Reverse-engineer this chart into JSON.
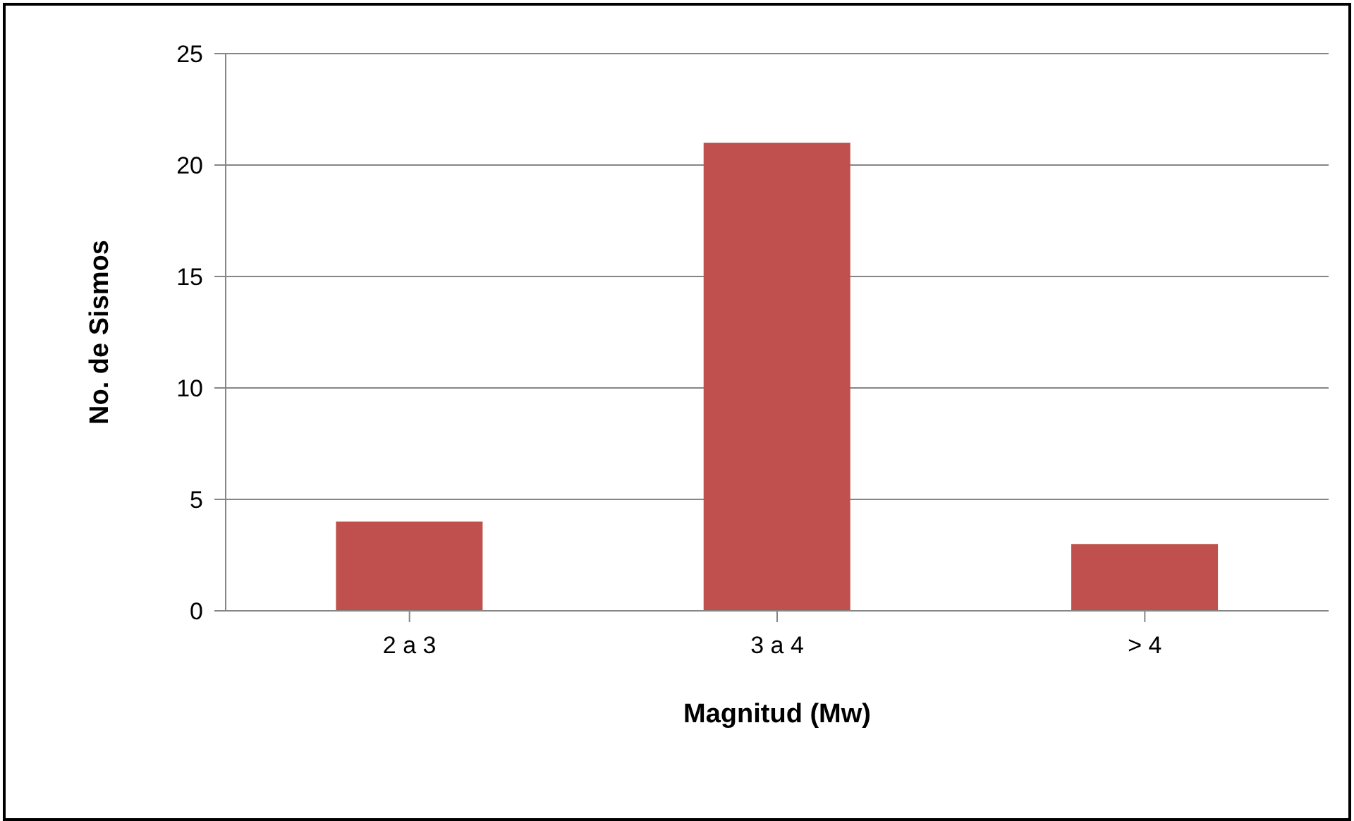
{
  "chart_data": {
    "type": "bar",
    "xlabel": "Magnitud (Mw)",
    "ylabel": "No. de Sismos",
    "categories": [
      "2 a 3",
      "3 a 4",
      "> 4"
    ],
    "values": [
      4,
      21,
      3
    ],
    "color": "#c0504d",
    "ylim": [
      0,
      25
    ],
    "yticks": [
      0,
      5,
      10,
      15,
      20,
      25
    ],
    "grid": "y"
  }
}
